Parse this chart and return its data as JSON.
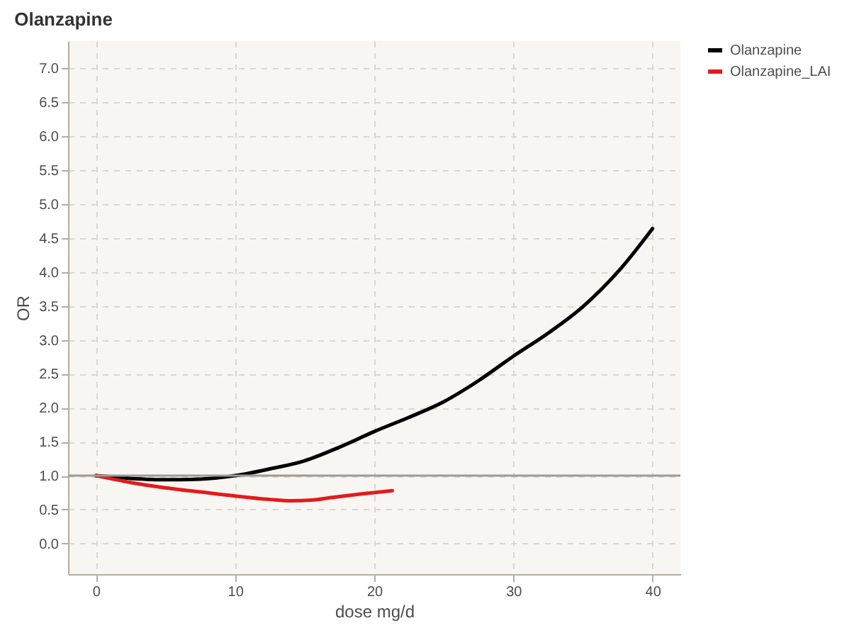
{
  "chart_data": {
    "type": "line",
    "title": "Olanzapine",
    "xlabel": "dose mg/d",
    "ylabel": "OR",
    "xlim": [
      -2,
      42
    ],
    "xticks": [
      0,
      10,
      20,
      30,
      40
    ],
    "ylim": [
      -0.45,
      7.4
    ],
    "yticks": [
      {
        "value": 0,
        "label": "0.0"
      },
      {
        "value": 0.5,
        "label": "0.5"
      },
      {
        "value": 1,
        "label": "1.0"
      },
      {
        "value": 1.5,
        "label": "1.5"
      },
      {
        "value": 2,
        "label": "2.0"
      },
      {
        "value": 2.5,
        "label": "2.5"
      },
      {
        "value": 3,
        "label": "3.0"
      },
      {
        "value": 3.5,
        "label": "3.5"
      },
      {
        "value": 4,
        "label": "4.0"
      },
      {
        "value": 4.5,
        "label": "4.5"
      },
      {
        "value": 5,
        "label": "5.0"
      },
      {
        "value": 5.5,
        "label": "5.5"
      },
      {
        "value": 6,
        "label": "6.0"
      },
      {
        "value": 6.5,
        "label": "6.5"
      },
      {
        "value": 7,
        "label": "7.0"
      }
    ],
    "grid": true,
    "legend": "right",
    "line_style": "solid",
    "marker": "none",
    "ref_lines": [
      {
        "axis": "y",
        "value": 1.0,
        "color": "#a09a94"
      }
    ],
    "series": [
      {
        "name": "Olanzapine",
        "color": "#000000",
        "x": [
          0,
          2.5,
          5,
          7.5,
          10,
          12.5,
          15,
          17.5,
          20,
          22.5,
          25,
          27.5,
          30,
          32.5,
          35,
          37.5,
          40
        ],
        "values": [
          1.0,
          0.96,
          0.94,
          0.95,
          1.0,
          1.1,
          1.22,
          1.42,
          1.65,
          1.86,
          2.09,
          2.4,
          2.76,
          3.1,
          3.49,
          4.0,
          4.64
        ]
      },
      {
        "name": "Olanzapine_LAI",
        "color": "#e41a1c",
        "x": [
          0,
          2.5,
          5,
          7.5,
          10,
          12.5,
          14,
          15.5,
          17,
          19,
          21.3
        ],
        "values": [
          1.0,
          0.9,
          0.82,
          0.76,
          0.7,
          0.65,
          0.63,
          0.64,
          0.68,
          0.73,
          0.78
        ]
      }
    ]
  }
}
